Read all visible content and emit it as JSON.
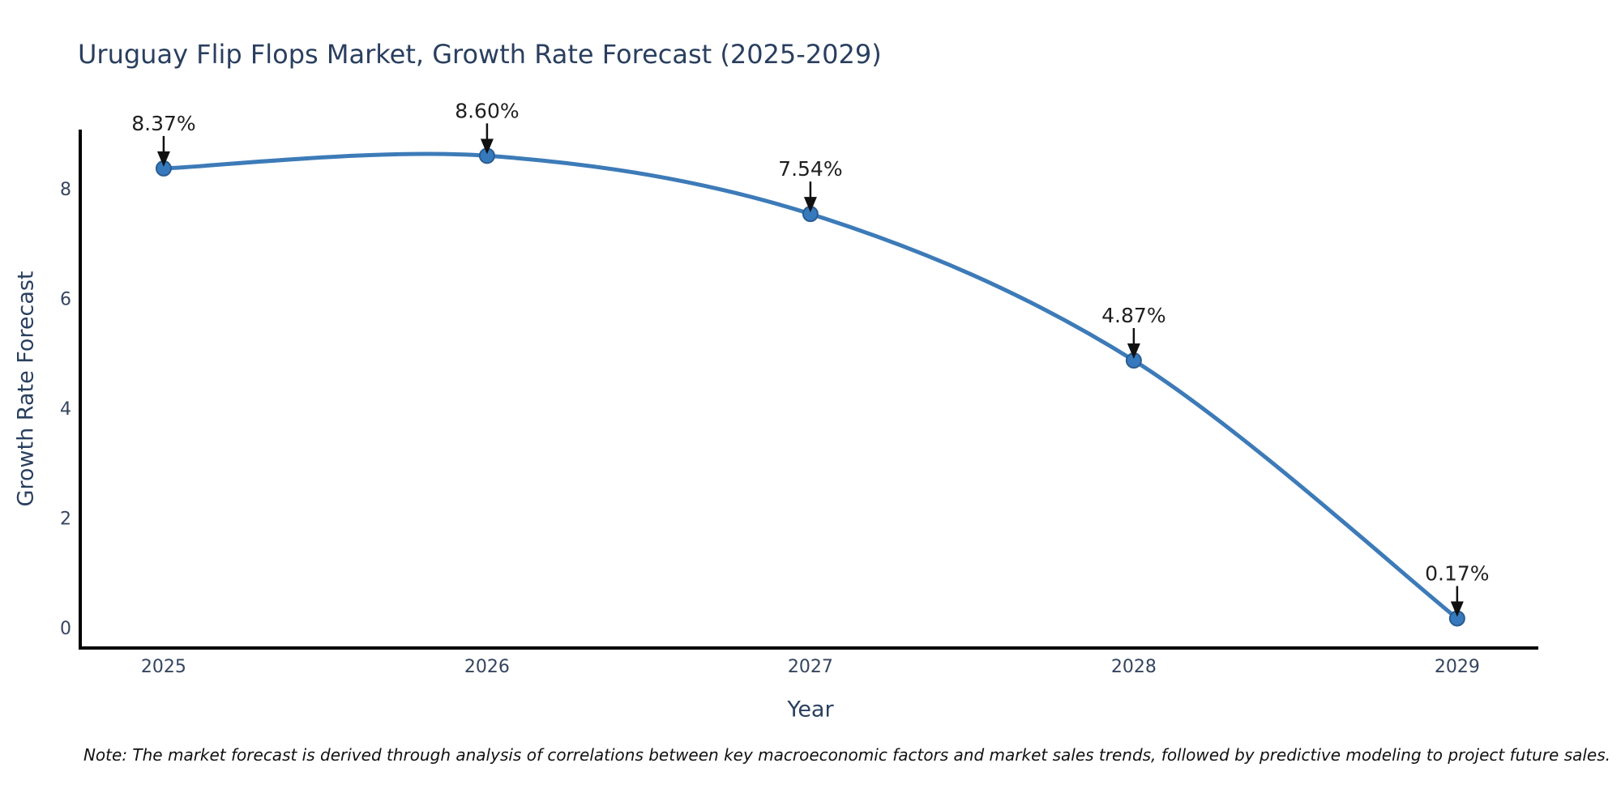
{
  "chart_data": {
    "type": "line",
    "title": "Uruguay Flip Flops Market, Growth Rate Forecast (2025-2029)",
    "xlabel": "Year",
    "ylabel": "Growth Rate Forecast",
    "x": [
      2025,
      2026,
      2027,
      2028,
      2029
    ],
    "values": [
      8.37,
      8.6,
      7.54,
      4.87,
      0.17
    ],
    "point_labels": [
      "8.37%",
      "8.60%",
      "7.54%",
      "4.87%",
      "0.17%"
    ],
    "xticks": [
      "2025",
      "2026",
      "2027",
      "2028",
      "2029"
    ],
    "xtick_values": [
      2025,
      2026,
      2027,
      2028,
      2029
    ],
    "yticks": [
      "0",
      "2",
      "4",
      "6",
      "8"
    ],
    "ytick_values": [
      0,
      2,
      4,
      6,
      8
    ],
    "xlim": [
      2024.737,
      2029.251
    ],
    "ylim": [
      -0.369,
      9.077
    ],
    "grid": false,
    "legend": "none",
    "line_shape": "spline",
    "colors": {
      "line": "#3d7bb8",
      "marker_fill": "#3779bd",
      "marker_edge": "#2a5d90",
      "axis": "#000000",
      "title": "#2a3f5f",
      "axis_label": "#2a3f5f",
      "tick_label": "#36455f",
      "annotation_text": "#1f1f1f",
      "annotation_arrow": "#111111",
      "background": "#ffffff"
    },
    "note": "Note: The market forecast is derived through analysis of correlations between key macroeconomic factors and market sales trends, followed by predictive modeling to project future sales."
  }
}
